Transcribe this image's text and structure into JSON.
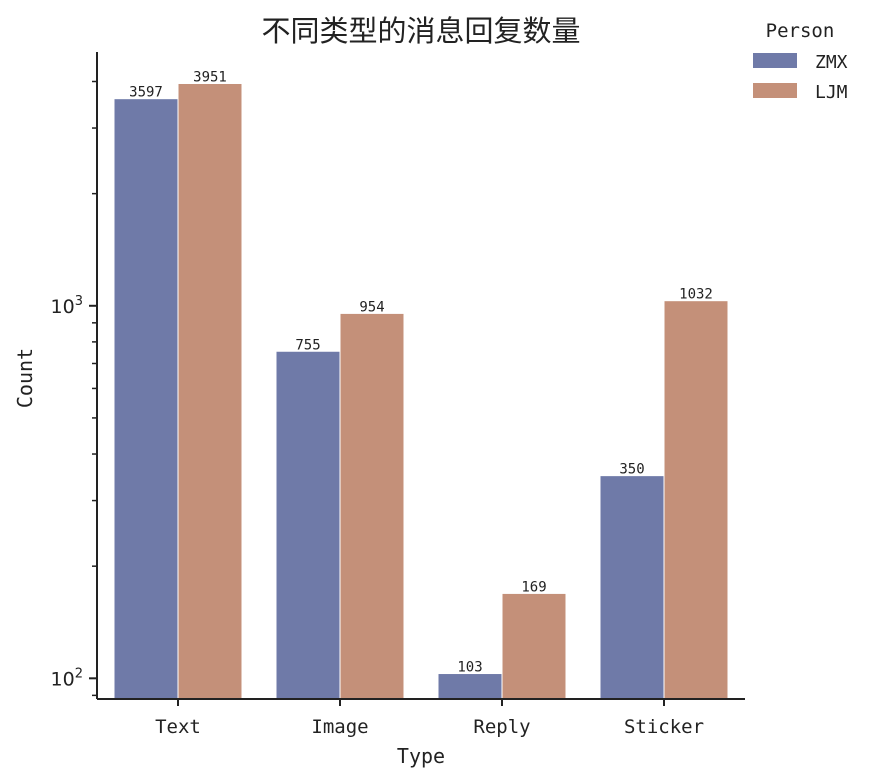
{
  "chart_data": {
    "type": "bar",
    "title": "不同类型的消息回复数量",
    "xlabel": "Type",
    "ylabel": "Count",
    "yscale": "log",
    "ylim": [
      88,
      4800
    ],
    "categories": [
      "Text",
      "Image",
      "Reply",
      "Sticker"
    ],
    "series": [
      {
        "name": "ZMX",
        "values": [
          3597,
          755,
          103,
          350
        ],
        "color": "#6f7aa8"
      },
      {
        "name": "LJM",
        "values": [
          3951,
          954,
          169,
          1032
        ],
        "color": "#c49079"
      }
    ],
    "yticks": [
      {
        "value": 100,
        "base": "10",
        "exp": "2"
      },
      {
        "value": 1000,
        "base": "10",
        "exp": "3"
      }
    ],
    "legend": {
      "title": "Person",
      "placement": "top-right, outside plot"
    },
    "grid": false
  }
}
